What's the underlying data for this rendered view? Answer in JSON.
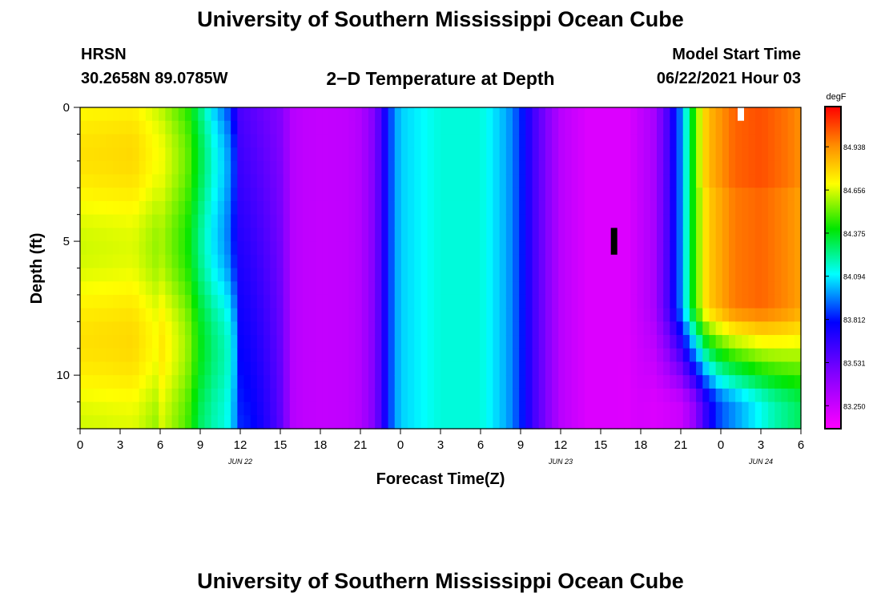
{
  "chart_title": "University of Southern Mississippi Ocean Cube",
  "footer_title": "University of Southern Mississippi Ocean Cube",
  "station": {
    "name": "HRSN",
    "coords": "30.2658N  89.0785W"
  },
  "product_title": "2−D Temperature at Depth",
  "model": {
    "label": "Model Start Time",
    "value": "06/22/2021 Hour 03"
  },
  "chart_data": {
    "type": "heatmap",
    "xlabel": "Forecast Time(Z)",
    "ylabel": "Depth (ft)",
    "x_range_hours": [
      0,
      54
    ],
    "y_range_ft": [
      0,
      12
    ],
    "y_inverted": true,
    "x_tick_labels": [
      "0",
      "3",
      "6",
      "9",
      "12",
      "15",
      "18",
      "21",
      "0",
      "3",
      "6",
      "9",
      "12",
      "15",
      "18",
      "21",
      "0",
      "3",
      "6"
    ],
    "y_tick_labels": [
      "0",
      "5",
      "10"
    ],
    "y_ticks": [
      0,
      5,
      10
    ],
    "date_labels": [
      {
        "text": "JUN 22",
        "hour": 12
      },
      {
        "text": "JUN 23",
        "hour": 36
      },
      {
        "text": "JUN 24",
        "hour": 51
      }
    ],
    "colorbar": {
      "unit": "degF",
      "labels": [
        "84.938",
        "84.656",
        "84.375",
        "84.094",
        "83.812",
        "83.531",
        "83.250"
      ],
      "min": 83.1,
      "max": 85.2
    },
    "surface_profile_degF": [
      [
        0,
        84.7
      ],
      [
        4,
        84.72
      ],
      [
        6,
        84.62
      ],
      [
        8,
        84.45
      ],
      [
        9,
        84.25
      ],
      [
        10,
        84.05
      ],
      [
        11,
        83.9
      ],
      [
        12,
        83.6
      ],
      [
        14,
        83.5
      ],
      [
        15,
        83.45
      ],
      [
        16,
        83.3
      ],
      [
        17,
        83.28
      ],
      [
        18,
        83.27
      ],
      [
        20,
        83.28
      ],
      [
        21,
        83.32
      ],
      [
        22,
        83.45
      ],
      [
        22.5,
        83.6
      ],
      [
        23,
        83.8
      ],
      [
        23.5,
        83.95
      ],
      [
        24,
        84.05
      ],
      [
        27,
        84.15
      ],
      [
        30,
        84.15
      ],
      [
        32,
        84.0
      ],
      [
        33,
        83.85
      ],
      [
        34,
        83.62
      ],
      [
        35,
        83.45
      ],
      [
        36,
        83.3
      ],
      [
        38,
        83.2
      ],
      [
        41,
        83.2
      ],
      [
        43,
        83.35
      ],
      [
        44,
        83.6
      ],
      [
        45,
        83.95
      ],
      [
        46,
        84.45
      ],
      [
        47,
        84.8
      ],
      [
        49,
        84.98
      ],
      [
        51,
        85.02
      ],
      [
        53,
        84.95
      ],
      [
        54,
        84.9
      ]
    ],
    "late_profile_deep_degF": [
      [
        0,
        84.65
      ],
      [
        6,
        84.8
      ],
      [
        8,
        84.55
      ],
      [
        9,
        84.3
      ],
      [
        10,
        84.1
      ],
      [
        12,
        83.95
      ],
      [
        14,
        83.7
      ],
      [
        15,
        83.5
      ],
      [
        16,
        83.4
      ],
      [
        20,
        83.4
      ],
      [
        21,
        83.48
      ],
      [
        22,
        83.6
      ],
      [
        23,
        83.8
      ],
      [
        24,
        84.0
      ],
      [
        27,
        84.15
      ],
      [
        30,
        84.15
      ],
      [
        32,
        84.0
      ],
      [
        33,
        83.85
      ],
      [
        34,
        83.62
      ],
      [
        35,
        83.45
      ],
      [
        36,
        83.28
      ],
      [
        38,
        83.2
      ],
      [
        41,
        83.18
      ],
      [
        43,
        83.2
      ],
      [
        45,
        83.25
      ],
      [
        46,
        83.4
      ],
      [
        47,
        83.7
      ],
      [
        48,
        83.9
      ],
      [
        50,
        84.05
      ],
      [
        52,
        84.2
      ],
      [
        54,
        84.3
      ]
    ],
    "marks": [
      {
        "type": "black-bar",
        "hour": 40,
        "depth_ft": [
          4.5,
          5.5
        ]
      },
      {
        "type": "white-bar",
        "hour": 49.5,
        "depth_ft": [
          0,
          0.5
        ]
      }
    ]
  }
}
